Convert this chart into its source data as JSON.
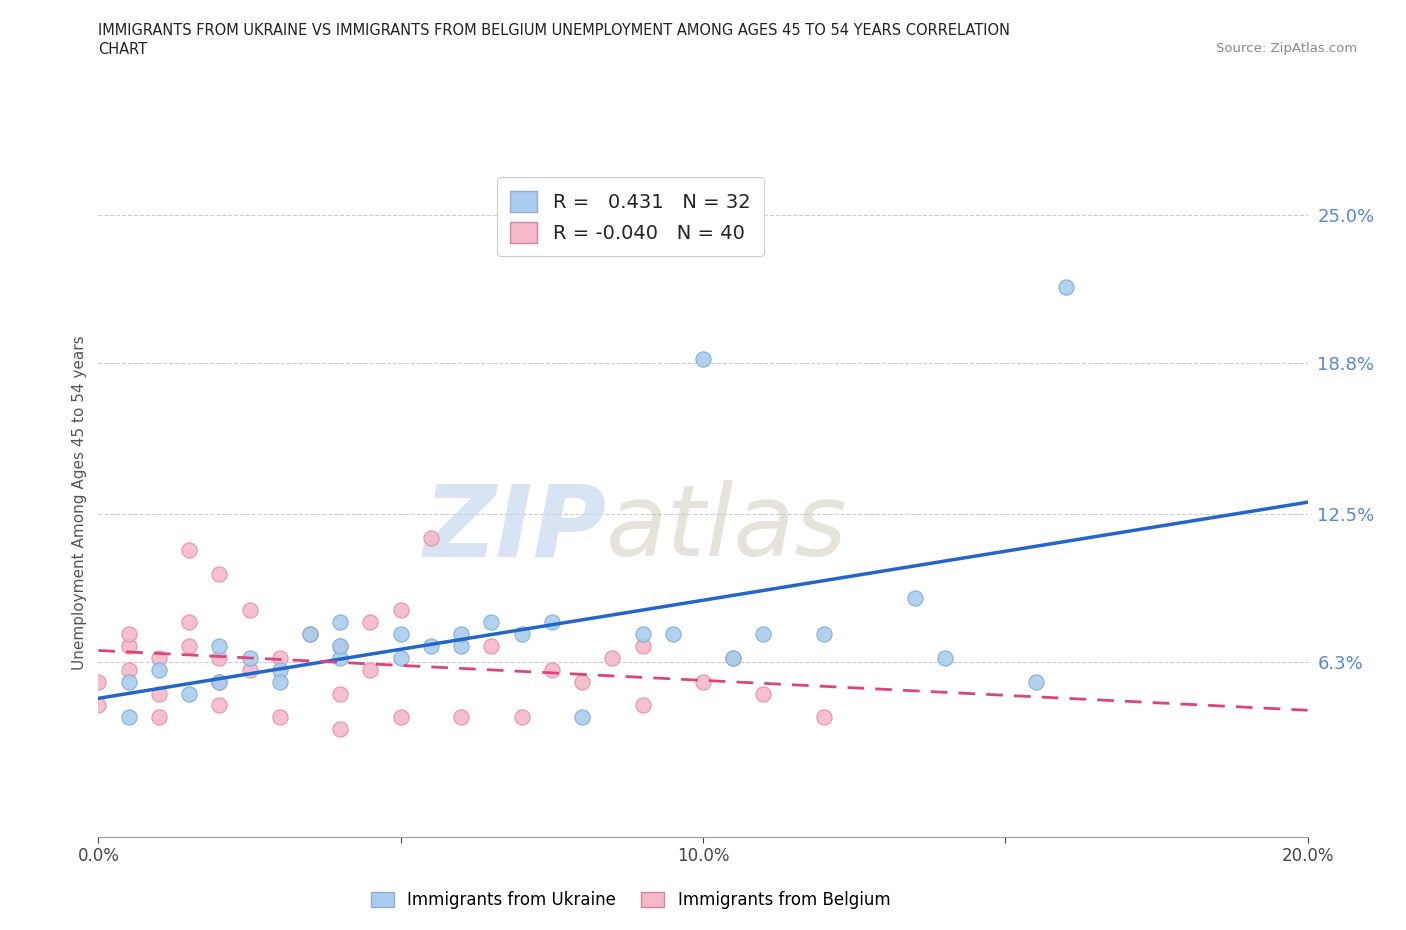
{
  "title_line1": "IMMIGRANTS FROM UKRAINE VS IMMIGRANTS FROM BELGIUM UNEMPLOYMENT AMONG AGES 45 TO 54 YEARS CORRELATION",
  "title_line2": "CHART",
  "source": "Source: ZipAtlas.com",
  "ylabel": "Unemployment Among Ages 45 to 54 years",
  "xlim": [
    0.0,
    0.2
  ],
  "ylim": [
    -0.01,
    0.27
  ],
  "yticks": [
    0.063,
    0.125,
    0.188,
    0.25
  ],
  "ytick_labels": [
    "6.3%",
    "12.5%",
    "18.8%",
    "25.0%"
  ],
  "xticks": [
    0.0,
    0.05,
    0.1,
    0.15,
    0.2
  ],
  "xtick_labels": [
    "0.0%",
    "",
    "10.0%",
    "",
    "20.0%"
  ],
  "ukraine_color": "#aaccee",
  "ukraine_edge": "#7aadd4",
  "belgium_color": "#f4b8c8",
  "belgium_edge": "#e090a8",
  "ukraine_R": 0.431,
  "ukraine_N": 32,
  "belgium_R": -0.04,
  "belgium_N": 40,
  "ukraine_scatter_x": [
    0.005,
    0.005,
    0.01,
    0.015,
    0.02,
    0.02,
    0.025,
    0.03,
    0.03,
    0.035,
    0.04,
    0.04,
    0.04,
    0.05,
    0.05,
    0.055,
    0.06,
    0.06,
    0.065,
    0.07,
    0.075,
    0.08,
    0.09,
    0.095,
    0.1,
    0.105,
    0.11,
    0.12,
    0.135,
    0.14,
    0.155,
    0.16
  ],
  "ukraine_scatter_y": [
    0.055,
    0.04,
    0.06,
    0.05,
    0.07,
    0.055,
    0.065,
    0.06,
    0.055,
    0.075,
    0.065,
    0.07,
    0.08,
    0.065,
    0.075,
    0.07,
    0.07,
    0.075,
    0.08,
    0.075,
    0.08,
    0.04,
    0.075,
    0.075,
    0.19,
    0.065,
    0.075,
    0.075,
    0.09,
    0.065,
    0.055,
    0.22
  ],
  "belgium_scatter_x": [
    0.0,
    0.0,
    0.005,
    0.005,
    0.005,
    0.01,
    0.01,
    0.01,
    0.015,
    0.015,
    0.015,
    0.02,
    0.02,
    0.02,
    0.02,
    0.025,
    0.025,
    0.03,
    0.03,
    0.035,
    0.04,
    0.04,
    0.04,
    0.045,
    0.045,
    0.05,
    0.05,
    0.055,
    0.06,
    0.065,
    0.07,
    0.075,
    0.08,
    0.085,
    0.09,
    0.09,
    0.1,
    0.105,
    0.11,
    0.12
  ],
  "belgium_scatter_y": [
    0.045,
    0.055,
    0.06,
    0.07,
    0.075,
    0.04,
    0.05,
    0.065,
    0.07,
    0.08,
    0.11,
    0.045,
    0.055,
    0.065,
    0.1,
    0.06,
    0.085,
    0.04,
    0.065,
    0.075,
    0.035,
    0.05,
    0.07,
    0.06,
    0.08,
    0.04,
    0.085,
    0.115,
    0.04,
    0.07,
    0.04,
    0.06,
    0.055,
    0.065,
    0.045,
    0.07,
    0.055,
    0.065,
    0.05,
    0.04
  ],
  "watermark_zip": "ZIP",
  "watermark_atlas": "atlas",
  "background_color": "#ffffff",
  "grid_color": "#cccccc",
  "trendline_ukraine_color": "#2266cc",
  "trendline_belgium_color": "#dd4477",
  "legend_box_ukraine": "#aaccee",
  "legend_box_belgium": "#f4b8c8",
  "trendline_ukraine_x0": 0.0,
  "trendline_ukraine_y0": 0.048,
  "trendline_ukraine_x1": 0.2,
  "trendline_ukraine_y1": 0.13,
  "trendline_belgium_x0": 0.0,
  "trendline_belgium_y0": 0.068,
  "trendline_belgium_x1": 0.2,
  "trendline_belgium_y1": 0.043
}
